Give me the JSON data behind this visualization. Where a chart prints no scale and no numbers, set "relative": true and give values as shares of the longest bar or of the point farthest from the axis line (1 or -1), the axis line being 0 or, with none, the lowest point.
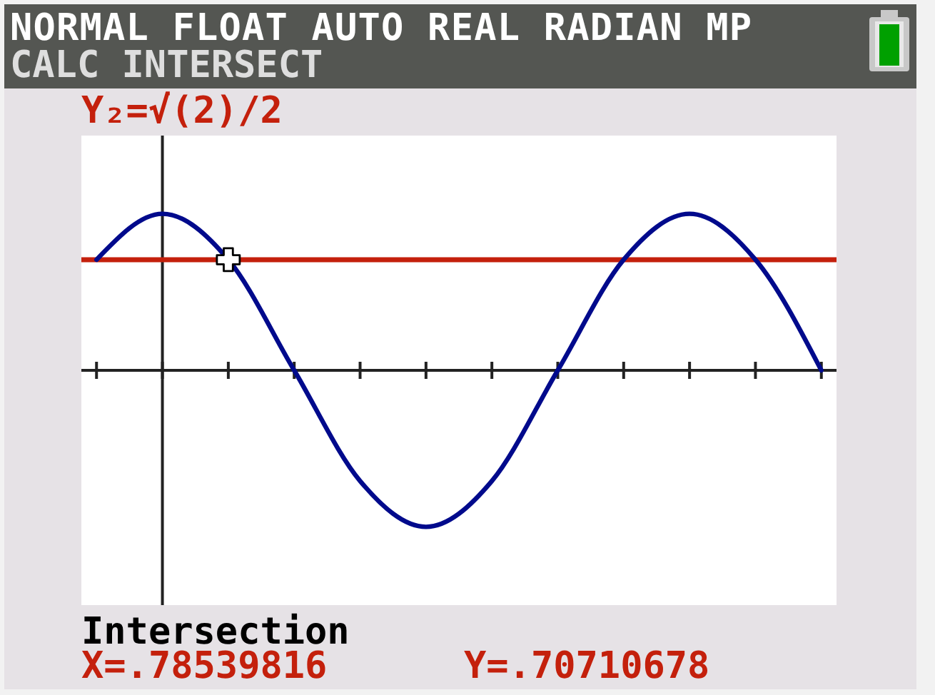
{
  "chart_data": {
    "type": "line",
    "title": "NORMAL FLOAT AUTO REAL RADIAN MP",
    "subtitle": "CALC INTERSECT",
    "relative": true,
    "categories": [
      null,
      null,
      null,
      null,
      null,
      null,
      null,
      null,
      null,
      null,
      null,
      null
    ],
    "series": [
      {
        "color": "#000a8c",
        "values": [
          0.707,
          1,
          0.707,
          0,
          -0.707,
          -1,
          -0.707,
          0,
          0.707,
          1,
          0.707,
          0
        ]
      }
    ],
    "ref_lines": [
      {
        "axis": "y",
        "value": 0.707,
        "label": "Y₂=√(2)/2",
        "color": "#c4200c"
      }
    ],
    "annotations": [
      "Intersection",
      "X=.78539816",
      "Y=.70710678"
    ]
  }
}
